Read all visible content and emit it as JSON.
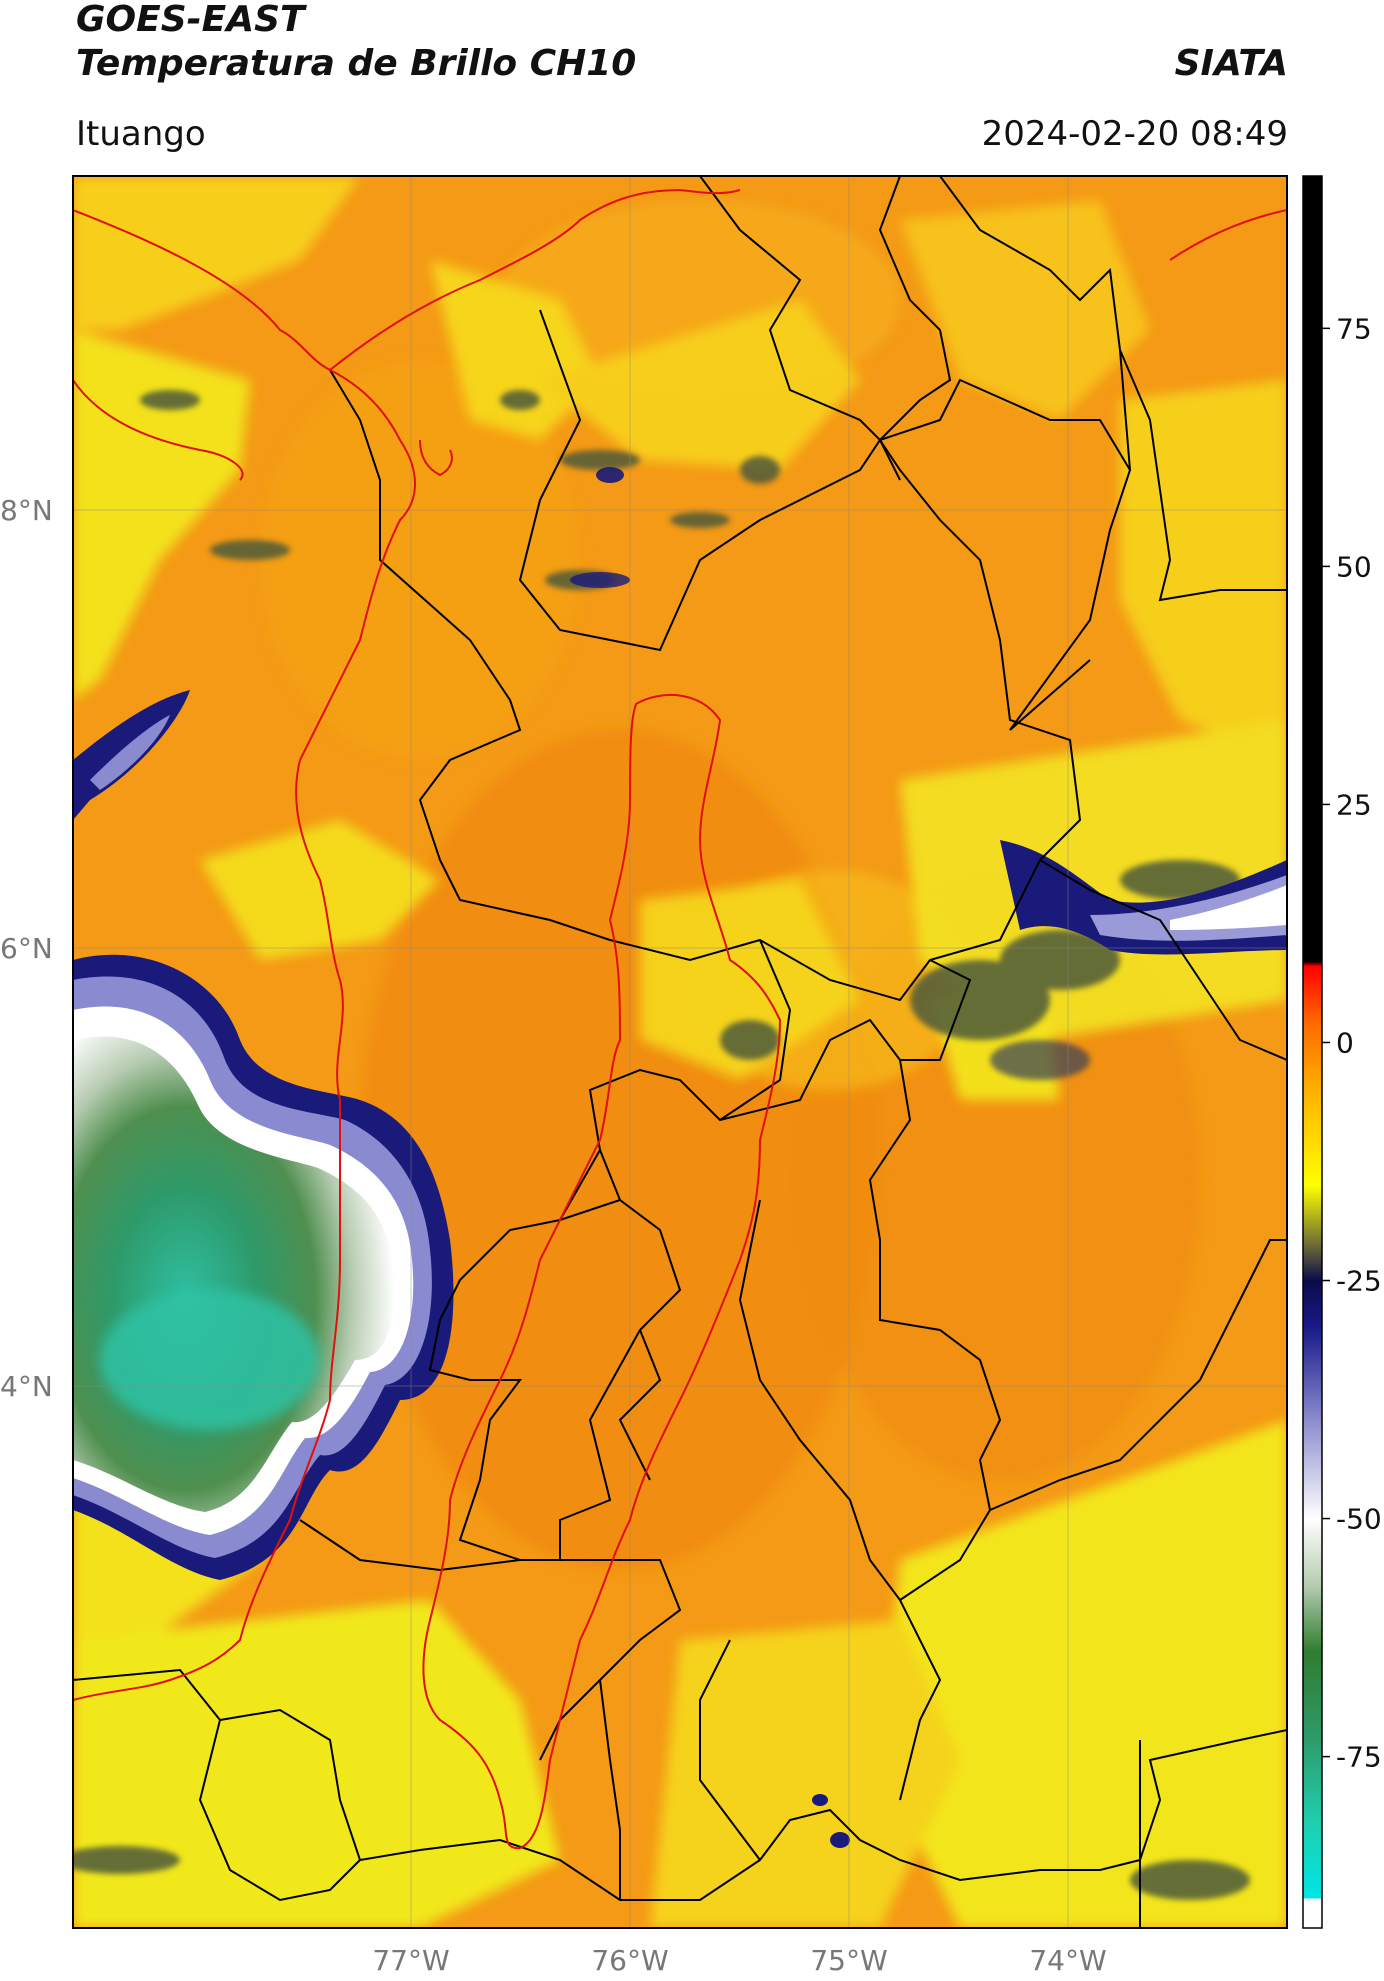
{
  "header": {
    "satellite": "GOES-EAST",
    "product": "Temperatura de Brillo CH10",
    "agency": "SIATA",
    "region": "Ituango",
    "datetime": "2024-02-20 08:49"
  },
  "map": {
    "lat_ticks": [
      "8°N",
      "6°N",
      "4°N"
    ],
    "lon_ticks": [
      "77°W",
      "76°W",
      "75°W",
      "74°W"
    ],
    "lat_values": [
      8,
      6,
      4
    ],
    "lon_values": [
      -77,
      -76,
      -75,
      -74
    ],
    "extent": {
      "lon_min": -78.55,
      "lon_max": -72.99,
      "lat_min": 1.51,
      "lat_max": 9.53
    },
    "colors": {
      "background_orange": "#f39c12",
      "cold_cloud_green": "#2e8b57",
      "cold_cloud_teal": "#2ec4a8",
      "cloud_edge_navy": "#1a1a7a",
      "cloud_edge_white": "#ffffff",
      "boundary_black": "#000000",
      "coast_red": "#e01010"
    }
  },
  "colorbar": {
    "ticks": [
      "75",
      "50",
      "25",
      "0",
      "-25",
      "-50",
      "-75"
    ],
    "tick_values": [
      75,
      50,
      25,
      0,
      -25,
      -50,
      -75
    ],
    "range": [
      -93,
      91
    ],
    "stops": [
      {
        "value": -93,
        "color": "#ffffff"
      },
      {
        "value": -89.9,
        "color": "#ffffff"
      },
      {
        "value": -89.9,
        "color": "#00e5e5"
      },
      {
        "value": -82,
        "color": "#1fcfb0"
      },
      {
        "value": -73,
        "color": "#2e9a6a"
      },
      {
        "value": -64,
        "color": "#2f7d2f"
      },
      {
        "value": -57,
        "color": "#b5ccb0"
      },
      {
        "value": -50,
        "color": "#ffffff"
      },
      {
        "value": -40,
        "color": "#8f8fd0"
      },
      {
        "value": -30,
        "color": "#1a1a8a"
      },
      {
        "value": -25,
        "color": "#0b0b4a"
      },
      {
        "value": -22,
        "color": "#5a5a3a"
      },
      {
        "value": -15,
        "color": "#ffff00"
      },
      {
        "value": -5,
        "color": "#ffb000"
      },
      {
        "value": 2,
        "color": "#ff6a00"
      },
      {
        "value": 8,
        "color": "#ff0000"
      },
      {
        "value": 8.5,
        "color": "#000000"
      },
      {
        "value": 91,
        "color": "#000000"
      }
    ]
  }
}
